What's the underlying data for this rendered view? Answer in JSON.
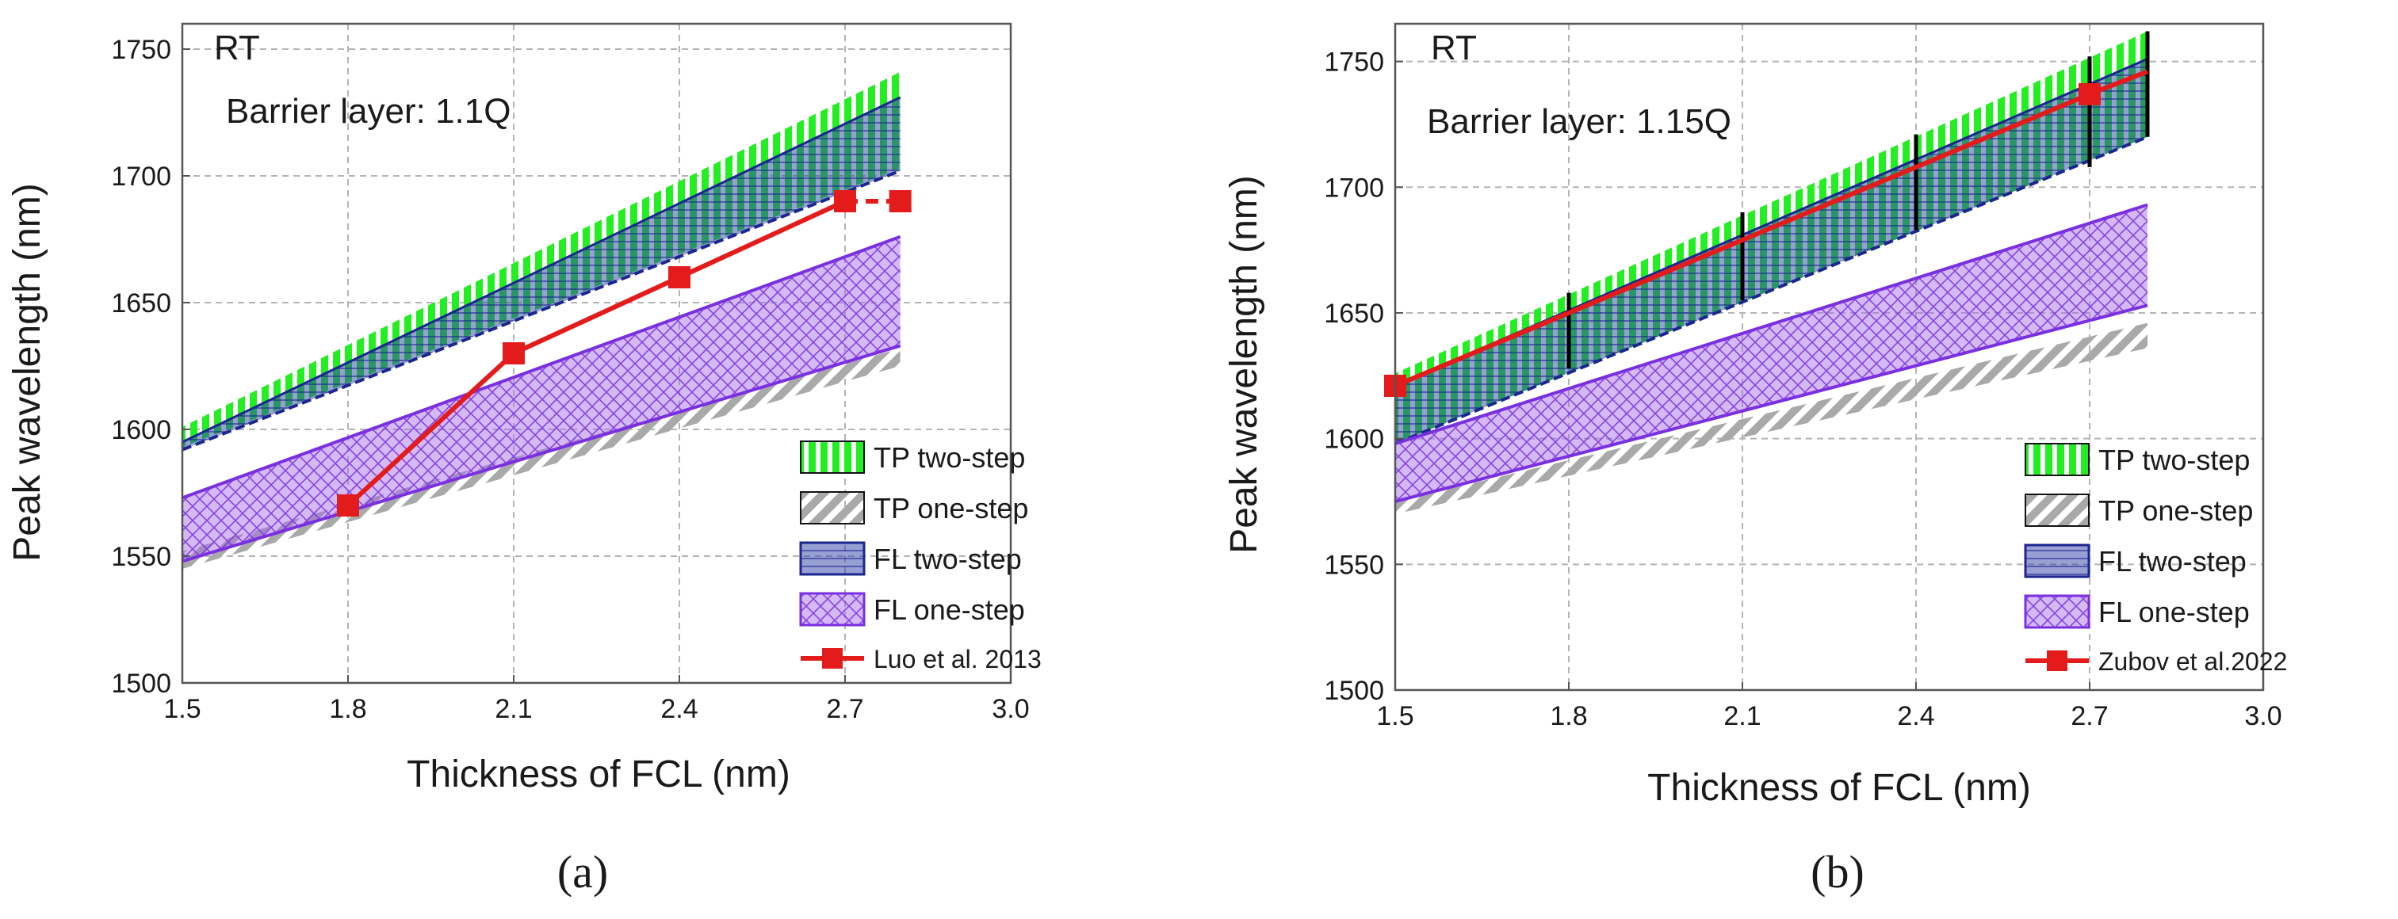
{
  "colors": {
    "tp_two": "#22ee22",
    "tp_one": "#a9a9a9",
    "fl_two_fill": "#2f3fa8",
    "fl_two_line": "#1b2690",
    "fl_one_fill": "#a064e8",
    "fl_one_line": "#7a2fe0",
    "exp": "#e41b1b",
    "err": "#000000"
  },
  "chart_data": [
    {
      "id": "a",
      "type": "area",
      "caption": "(a)",
      "annotations": [
        "RT",
        "Barrier layer: 1.1Q"
      ],
      "xlabel": "Thickness of FCL (nm)",
      "ylabel": "Peak wavelength (nm)",
      "xlim": [
        1.5,
        3.0
      ],
      "ylim": [
        1500,
        1760
      ],
      "xticks": [
        1.5,
        1.8,
        2.1,
        2.4,
        2.7,
        3.0
      ],
      "xtick_labels": [
        "1.5",
        "1.8",
        "2.1",
        "2.4",
        "2.7",
        "3.0"
      ],
      "yticks": [
        1500,
        1550,
        1600,
        1650,
        1700,
        1750
      ],
      "ytick_labels": [
        "1500",
        "1550",
        "1600",
        "1650",
        "1700",
        "1750"
      ],
      "grid": true,
      "legend_position": "bottom-right",
      "x": [
        1.5,
        2.8
      ],
      "bands": [
        {
          "name": "TP two-step",
          "lower": [
            1593,
            1703
          ],
          "upper": [
            1601,
            1741
          ]
        },
        {
          "name": "TP one-step",
          "lower": [
            1545,
            1625
          ],
          "upper": [
            1552,
            1632
          ]
        },
        {
          "name": "FL two-step",
          "lower": [
            1592,
            1702
          ],
          "upper": [
            1595,
            1731
          ]
        },
        {
          "name": "FL one-step",
          "lower": [
            1548,
            1633
          ],
          "upper": [
            1573,
            1676
          ]
        }
      ],
      "experiment": {
        "name": "Luo et al. 2013",
        "x": [
          1.8,
          2.1,
          2.4,
          2.7,
          2.8
        ],
        "y": [
          1570,
          1630,
          1660,
          1690,
          1690
        ],
        "dashed_last_segment": true
      },
      "legend_entries": [
        "TP two-step",
        "TP one-step",
        "FL two-step",
        "FL one-step",
        "Luo et al. 2013"
      ]
    },
    {
      "id": "b",
      "type": "area",
      "caption": "(b)",
      "annotations": [
        "RT",
        "Barrier layer: 1.15Q"
      ],
      "xlabel": "Thickness of FCL (nm)",
      "ylabel": "Peak wavelength (nm)",
      "xlim": [
        1.5,
        3.0
      ],
      "ylim": [
        1500,
        1765
      ],
      "xticks": [
        1.5,
        1.8,
        2.1,
        2.4,
        2.7,
        3.0
      ],
      "xtick_labels": [
        "1.5",
        "1.8",
        "2.1",
        "2.4",
        "2.7",
        "3.0"
      ],
      "yticks": [
        1500,
        1550,
        1600,
        1650,
        1700,
        1750
      ],
      "ytick_labels": [
        "1500",
        "1550",
        "1600",
        "1650",
        "1700",
        "1750"
      ],
      "grid": true,
      "legend_position": "bottom-right",
      "x": [
        1.5,
        2.8
      ],
      "bands": [
        {
          "name": "TP two-step",
          "lower": [
            1598,
            1720
          ],
          "upper": [
            1626,
            1762
          ]
        },
        {
          "name": "TP one-step",
          "lower": [
            1570,
            1636
          ],
          "upper": [
            1575,
            1646
          ]
        },
        {
          "name": "FL two-step",
          "lower": [
            1598,
            1720
          ],
          "upper": [
            1621,
            1751
          ]
        },
        {
          "name": "FL one-step",
          "lower": [
            1575,
            1653
          ],
          "upper": [
            1598,
            1693
          ]
        }
      ],
      "experiment": {
        "name": "Zubov et al.2022",
        "x": [
          1.5,
          2.7,
          2.8
        ],
        "y": [
          1621,
          1737,
          1746
        ],
        "marker_indices": [
          0,
          1
        ],
        "dashed_last_segment": false
      },
      "error_bars": {
        "x": [
          1.8,
          2.1,
          2.4,
          2.7,
          2.8
        ],
        "low": [
          1628,
          1655,
          1683,
          1708,
          1720
        ],
        "high": [
          1658,
          1690,
          1721,
          1752,
          1762
        ]
      },
      "legend_entries": [
        "TP two-step",
        "TP one-step",
        "FL two-step",
        "FL one-step",
        "Zubov et al.2022"
      ]
    }
  ]
}
